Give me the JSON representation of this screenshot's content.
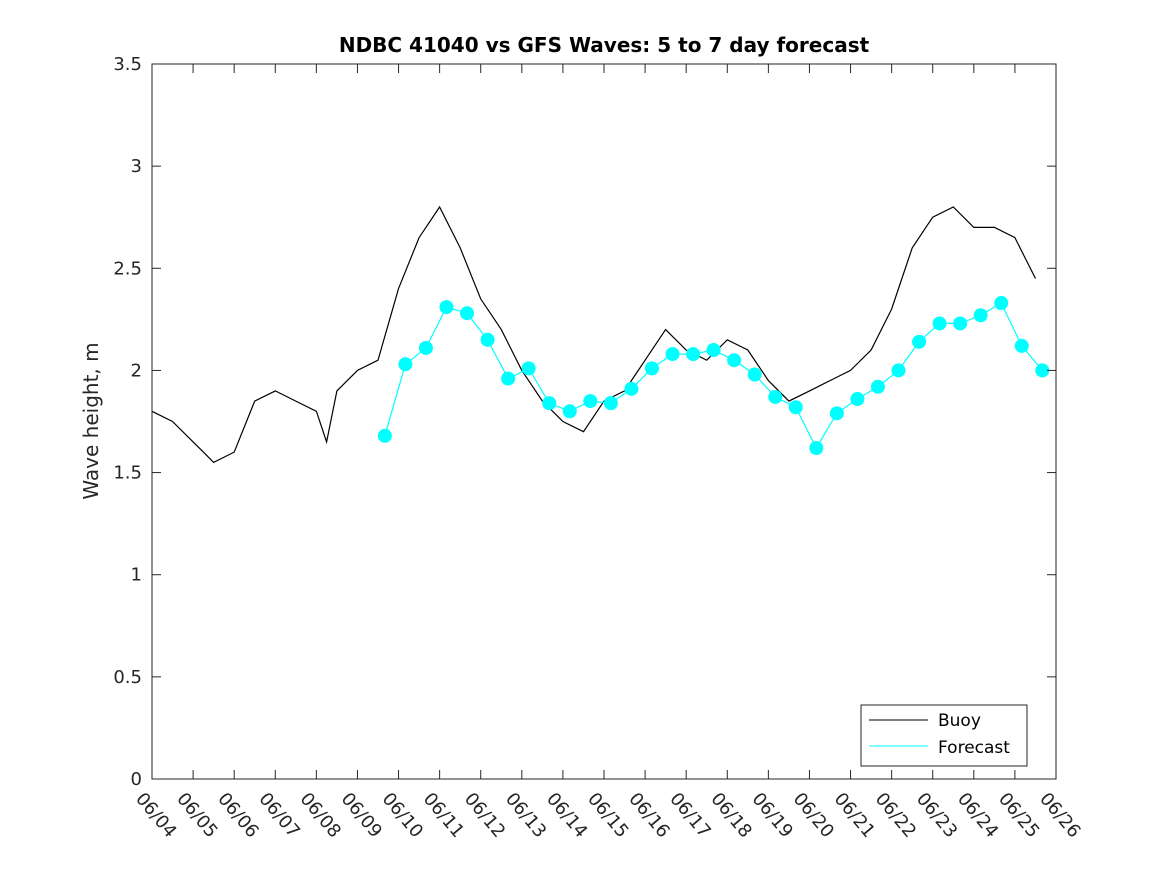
{
  "chart_data": {
    "type": "line",
    "title": "NDBC 41040 vs GFS Waves: 5 to 7 day forecast",
    "xlabel": "",
    "ylabel": "Wave height, m",
    "xlim": [
      "06/04",
      "06/26"
    ],
    "ylim": [
      0,
      3.5
    ],
    "yticks": [
      "0",
      "0.5",
      "1",
      "1.5",
      "2",
      "2.5",
      "3",
      "3.5"
    ],
    "xticks": [
      "06/04",
      "06/05",
      "06/06",
      "06/07",
      "06/08",
      "06/09",
      "06/10",
      "06/11",
      "06/12",
      "06/13",
      "06/14",
      "06/15",
      "06/16",
      "06/17",
      "06/18",
      "06/19",
      "06/20",
      "06/21",
      "06/22",
      "06/23",
      "06/24",
      "06/25",
      "06/26"
    ],
    "grid": false,
    "legend_position": "bottom-right",
    "colors": {
      "buoy": "#000000",
      "forecast": "#00ffff"
    },
    "series": [
      {
        "name": "Buoy",
        "x": [
          "06/04 00:00",
          "06/04 12:00",
          "06/05 00:00",
          "06/05 06:00",
          "06/05 12:00",
          "06/06 00:00",
          "06/06 12:00",
          "06/07 00:00",
          "06/07 12:00",
          "06/08 00:00",
          "06/08 06:00",
          "06/08 12:00",
          "06/09 00:00",
          "06/09 12:00",
          "06/10 00:00",
          "06/10 12:00",
          "06/11 00:00",
          "06/11 12:00",
          "06/12 00:00",
          "06/12 12:00",
          "06/13 00:00",
          "06/13 12:00",
          "06/14 00:00",
          "06/14 12:00",
          "06/15 00:00",
          "06/15 12:00",
          "06/16 00:00",
          "06/16 12:00",
          "06/17 00:00",
          "06/17 12:00",
          "06/18 00:00",
          "06/18 12:00",
          "06/19 00:00",
          "06/19 12:00",
          "06/20 00:00",
          "06/20 12:00",
          "06/21 00:00",
          "06/21 12:00",
          "06/22 00:00",
          "06/22 12:00",
          "06/23 00:00",
          "06/23 12:00",
          "06/24 00:00",
          "06/24 12:00",
          "06/25 00:00",
          "06/25 06:00",
          "06/25 12:00"
        ],
        "y": [
          1.8,
          1.75,
          1.65,
          1.6,
          1.55,
          1.6,
          1.85,
          1.9,
          1.85,
          1.8,
          1.65,
          1.9,
          2.0,
          2.05,
          2.4,
          2.65,
          2.8,
          2.6,
          2.35,
          2.2,
          2.0,
          1.85,
          1.75,
          1.7,
          1.85,
          1.9,
          2.05,
          2.2,
          2.1,
          2.05,
          2.15,
          2.1,
          1.95,
          1.85,
          1.9,
          1.95,
          2.0,
          2.1,
          2.3,
          2.6,
          2.75,
          2.8,
          2.7,
          2.7,
          2.65,
          2.55,
          2.45
        ]
      },
      {
        "name": "Forecast",
        "x": [
          "06/09 16:00",
          "06/10 04:00",
          "06/10 16:00",
          "06/11 04:00",
          "06/11 16:00",
          "06/12 04:00",
          "06/12 16:00",
          "06/13 04:00",
          "06/13 16:00",
          "06/14 04:00",
          "06/14 16:00",
          "06/15 04:00",
          "06/15 16:00",
          "06/16 04:00",
          "06/16 16:00",
          "06/17 04:00",
          "06/17 16:00",
          "06/18 04:00",
          "06/18 16:00",
          "06/19 04:00",
          "06/19 16:00",
          "06/20 04:00",
          "06/20 16:00",
          "06/21 04:00",
          "06/21 16:00",
          "06/22 04:00",
          "06/22 16:00",
          "06/23 04:00",
          "06/23 16:00",
          "06/24 04:00",
          "06/24 16:00",
          "06/25 04:00",
          "06/25 16:00"
        ],
        "y": [
          1.68,
          2.03,
          2.11,
          2.31,
          2.28,
          2.15,
          1.96,
          2.01,
          1.84,
          1.8,
          1.85,
          1.84,
          1.91,
          2.01,
          2.08,
          2.08,
          2.1,
          2.05,
          1.98,
          1.87,
          1.82,
          1.62,
          1.79,
          1.86,
          1.92,
          2.0,
          2.14,
          2.23,
          2.23,
          2.27,
          2.33,
          2.12,
          2.0
        ]
      }
    ]
  }
}
